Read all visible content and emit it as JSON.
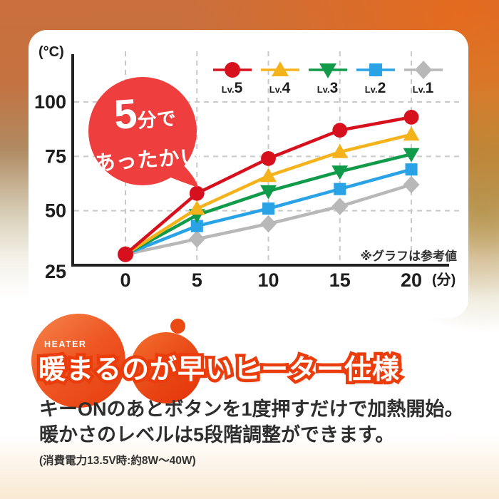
{
  "bubble": {
    "big": "5",
    "mid": "分で",
    "line2": "あったかい",
    "color": "#ee3e3e"
  },
  "heading": {
    "eyebrow": "HEATER",
    "title": "暖まるのが早いヒーター仕様"
  },
  "body": {
    "line1": "キーONのあとボタンを1度押すだけで加熱開始。",
    "line2": "暖かさのレベルは5段階調整ができます。",
    "note": "(消費電力13.5V時:約8W〜40W)"
  },
  "colors": {
    "accent_orange": "#eb3c0c",
    "bubble_red": "#ee3e3e",
    "axis": "#222222",
    "grid": "#c9c9c9"
  },
  "chart_data": {
    "type": "line",
    "x": [
      0,
      5,
      10,
      15,
      20
    ],
    "xlabel": "(分)",
    "ylabel": "(°C)",
    "ylim": [
      25,
      110
    ],
    "yticks": [
      25,
      50,
      75,
      100
    ],
    "grid": true,
    "legend_position": "top-right",
    "annotation": "※グラフは参考値",
    "series": [
      {
        "label_prefix": "Lv.",
        "label_level": "5",
        "marker": "circle",
        "color": "#d7101e",
        "values": [
          30,
          58,
          74,
          87,
          93
        ]
      },
      {
        "label_prefix": "Lv.",
        "label_level": "4",
        "marker": "triangle-up",
        "color": "#f5b31b",
        "values": [
          30,
          51,
          66,
          77,
          85
        ]
      },
      {
        "label_prefix": "Lv.",
        "label_level": "3",
        "marker": "triangle-down",
        "color": "#0f9b49",
        "values": [
          30,
          48,
          59,
          68,
          76
        ]
      },
      {
        "label_prefix": "Lv.",
        "label_level": "2",
        "marker": "square",
        "color": "#29a3e5",
        "values": [
          30,
          43,
          51,
          60,
          69
        ]
      },
      {
        "label_prefix": "Lv.",
        "label_level": "1",
        "marker": "diamond",
        "color": "#b8b8b8",
        "values": [
          30,
          37,
          44,
          52,
          62
        ]
      }
    ]
  }
}
